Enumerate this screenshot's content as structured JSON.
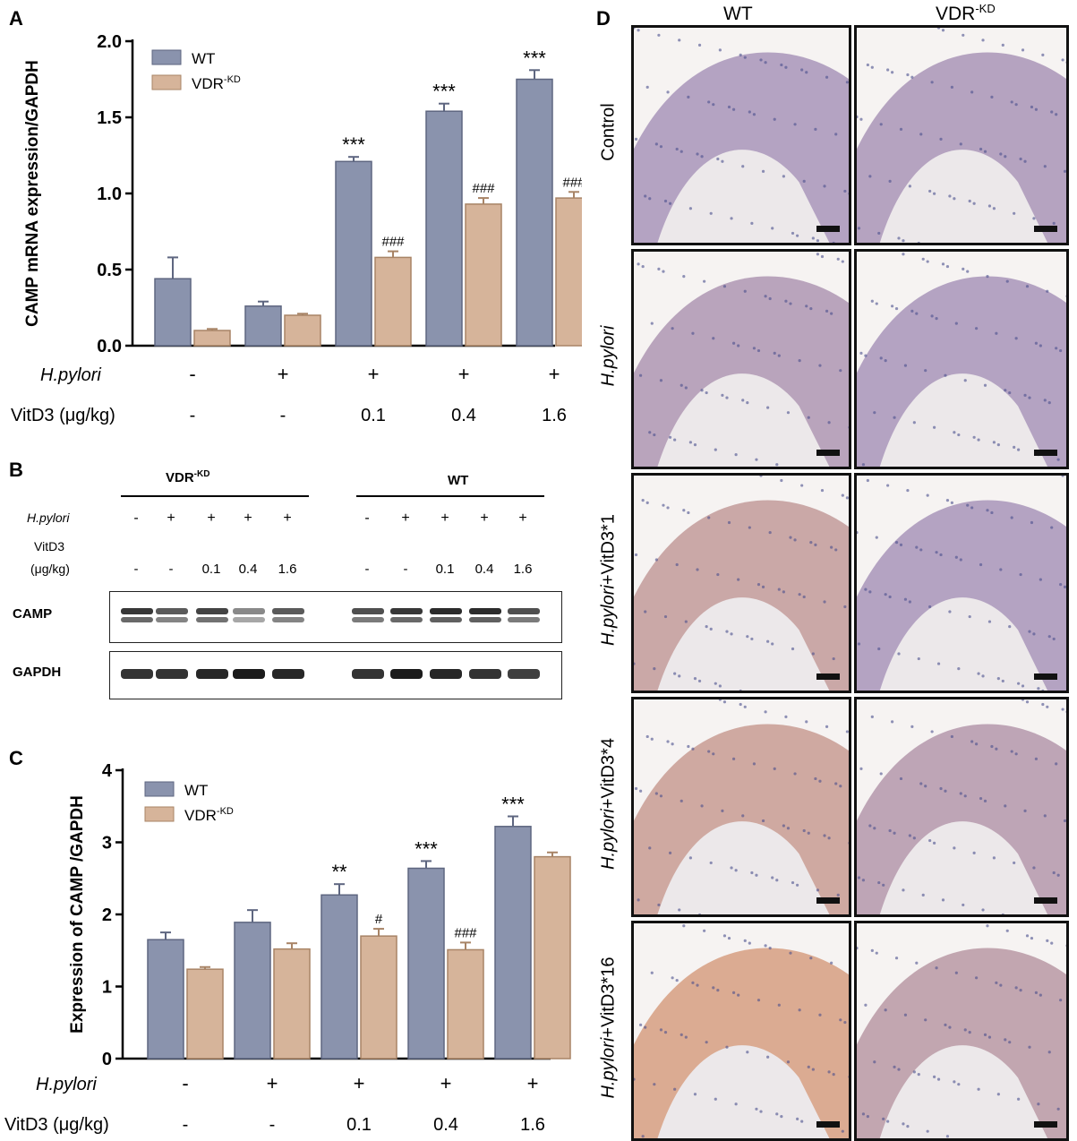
{
  "panels": {
    "A": "A",
    "B": "B",
    "C": "C",
    "D": "D"
  },
  "colors": {
    "wt": "#8a93ad",
    "kd": "#d6b49a",
    "wt_edge": "#5e6680",
    "kd_edge": "#a88466"
  },
  "chart_data": [
    {
      "type": "bar",
      "panel": "A",
      "ylabel": "CAMP mRNA expression/GAPDH",
      "ylim": [
        0,
        2.0
      ],
      "yticks": [
        "0.0",
        "0.5",
        "1.0",
        "1.5",
        "2.0"
      ],
      "legend_pos": "top-left",
      "legend": [
        {
          "name": "WT"
        },
        {
          "name": "VDR",
          "sup": "-KD"
        }
      ],
      "series": [
        {
          "name": "WT",
          "values": [
            0.44,
            0.26,
            1.21,
            1.54,
            1.75
          ],
          "errors": [
            0.14,
            0.03,
            0.03,
            0.05,
            0.06
          ]
        },
        {
          "name": "VDR-KD",
          "values": [
            0.1,
            0.2,
            0.58,
            0.93,
            0.97
          ],
          "errors": [
            0.01,
            0.01,
            0.04,
            0.04,
            0.04
          ]
        }
      ],
      "annotations_wt": [
        "",
        "",
        "***",
        "***",
        "***"
      ],
      "annotations_kd": [
        "",
        "",
        "###",
        "###",
        "###"
      ],
      "row_labels": [
        "H.pylori",
        "VitD3 (μg/kg)"
      ],
      "hpylori": [
        "-",
        "+",
        "+",
        "+",
        "+"
      ],
      "vitd3": [
        "-",
        "-",
        "0.1",
        "0.4",
        "1.6"
      ]
    },
    {
      "type": "bar",
      "panel": "C",
      "ylabel": "Expression of CAMP /GAPDH",
      "ylim": [
        0,
        4
      ],
      "yticks": [
        "0",
        "1",
        "2",
        "3",
        "4"
      ],
      "legend_pos": "top-left",
      "legend": [
        {
          "name": "WT"
        },
        {
          "name": "VDR",
          "sup": "-KD"
        }
      ],
      "series": [
        {
          "name": "WT",
          "values": [
            1.65,
            1.89,
            2.27,
            2.64,
            3.22
          ],
          "errors": [
            0.1,
            0.17,
            0.15,
            0.1,
            0.14
          ]
        },
        {
          "name": "VDR-KD",
          "values": [
            1.24,
            1.52,
            1.7,
            1.51,
            2.8
          ],
          "errors": [
            0.03,
            0.08,
            0.1,
            0.1,
            0.06
          ]
        }
      ],
      "annotations_wt": [
        "",
        "",
        "**",
        "***",
        "***"
      ],
      "annotations_kd": [
        "",
        "",
        "#",
        "###",
        ""
      ],
      "row_labels": [
        "H.pylori",
        "VitD3 (μg/kg)"
      ],
      "hpylori": [
        "-",
        "+",
        "+",
        "+",
        "+"
      ],
      "vitd3": [
        "-",
        "-",
        "0.1",
        "0.4",
        "1.6"
      ]
    }
  ],
  "blot": {
    "group_left": {
      "name": "VDR",
      "sup": "-KD"
    },
    "group_right": {
      "name": "WT"
    },
    "hpylori_label": "H.pylori",
    "vitd3_label_1": "VitD3",
    "vitd3_label_2": "(μg/kg)",
    "hpylori": [
      "-",
      "+",
      "+",
      "+",
      "+",
      "-",
      "+",
      "+",
      "+",
      "+"
    ],
    "vitd3": [
      "-",
      "-",
      "0.1",
      "0.4",
      "1.6",
      "-",
      "-",
      "0.1",
      "0.4",
      "1.6"
    ],
    "rows": [
      "CAMP",
      "GAPDH"
    ],
    "camp_intensity": [
      0.85,
      0.7,
      0.8,
      0.5,
      0.7,
      0.75,
      0.85,
      0.9,
      0.9,
      0.75
    ],
    "gapdh_intensity": [
      0.85,
      0.85,
      0.9,
      0.95,
      0.9,
      0.85,
      0.95,
      0.9,
      0.85,
      0.8
    ]
  },
  "histology": {
    "columns": [
      {
        "name": "WT"
      },
      {
        "name": "VDR",
        "sup": "-KD"
      }
    ],
    "rows": [
      {
        "label": "Control"
      },
      {
        "label": "H.pylori",
        "italic": true
      },
      {
        "label_italic": "H.pylori",
        "label_rest": "+VitD3*1"
      },
      {
        "label_italic": "H.pylori",
        "label_rest": "+VitD3*4"
      },
      {
        "label_italic": "H.pylori",
        "label_rest": "+VitD3*16"
      }
    ],
    "stain_level_wt": [
      0.05,
      0.15,
      0.5,
      0.6,
      0.85
    ],
    "stain_level_kd": [
      0.08,
      0.05,
      0.05,
      0.25,
      0.35
    ]
  }
}
